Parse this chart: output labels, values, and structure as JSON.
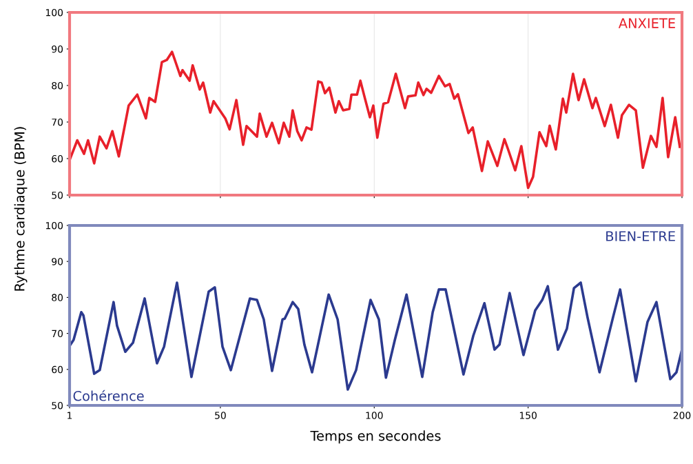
{
  "chart_data": [
    {
      "type": "line",
      "ylabel": "Rythme cardiaque (BPM)",
      "annotations": [
        "ANXIETE"
      ],
      "xlim": [
        1,
        200
      ],
      "xticks": [
        1,
        50,
        100,
        150,
        200
      ],
      "ylim": [
        50,
        100
      ],
      "yticks": [
        50,
        60,
        70,
        80,
        90,
        100
      ],
      "tick_labels": "y",
      "grid": "x",
      "line_style": "solid",
      "series": [
        {
          "color": "#e8202a",
          "x": [
            1,
            3.5,
            5.7,
            7,
            9,
            10.8,
            13,
            14.9,
            17,
            20.2,
            23,
            25.8,
            26.9,
            28.8,
            31,
            32.6,
            34.3,
            37,
            37.7,
            40,
            41,
            43.3,
            44.4,
            46.7,
            47.8,
            51.6,
            53,
            55.2,
            57.4,
            58.5,
            61.9,
            62.8,
            65,
            66.8,
            69,
            70.6,
            72.4,
            73.5,
            75,
            76.4,
            78,
            79.6,
            81.8,
            82.9,
            84,
            85.4,
            87.4,
            88.5,
            89.9,
            91.9,
            92.6,
            94.4,
            95.5,
            97,
            98.6,
            99.7,
            101,
            103,
            104.5,
            107,
            110,
            111,
            113.4,
            114.3,
            116,
            117,
            118.5,
            121,
            123,
            124.5,
            126,
            127.2,
            130.6,
            132,
            135,
            136.9,
            140,
            142.3,
            143.5,
            145.8,
            147.8,
            150,
            151.6,
            153.7,
            155.9,
            157,
            159,
            161.3,
            162.4,
            164.6,
            166.4,
            168.2,
            170.9,
            172,
            174.9,
            176.9,
            179.2,
            180.5,
            182.8,
            185,
            187.3,
            189.9,
            191.7,
            193.7,
            195.5,
            197.8,
            199.3
          ],
          "values": [
            59.6,
            65,
            61.3,
            65,
            58.7,
            66,
            62.8,
            67.5,
            60.6,
            74.5,
            77.5,
            71,
            76.6,
            75.5,
            86.4,
            87,
            89.2,
            82.6,
            84.2,
            81.3,
            85.5,
            78.9,
            80.8,
            72.6,
            75.7,
            71,
            68,
            76,
            63.8,
            68.9,
            66,
            72.3,
            66,
            69.8,
            64.2,
            69.8,
            66,
            73.2,
            67.5,
            65,
            68.5,
            67.9,
            81.1,
            80.8,
            77.9,
            79.4,
            72.6,
            75.7,
            73.2,
            73.6,
            77.5,
            77.5,
            81.3,
            76.4,
            71.3,
            74.5,
            65.7,
            75,
            75.4,
            83.2,
            73.8,
            77,
            77.3,
            80.8,
            77.4,
            79.1,
            78,
            82.6,
            79.8,
            80.4,
            76.4,
            77.6,
            67,
            68.5,
            56.6,
            64.7,
            58,
            65.3,
            62.5,
            56.8,
            63.4,
            52,
            55,
            67.2,
            63.4,
            69,
            62.5,
            76.4,
            72.6,
            83.2,
            76,
            81.7,
            73.8,
            76.6,
            68.9,
            74.7,
            65.7,
            71.9,
            74.7,
            73.2,
            57.5,
            66.2,
            63.2,
            76.6,
            60.4,
            71.3,
            63.2
          ]
        }
      ]
    },
    {
      "type": "line",
      "xlabel": "Temps en secondes",
      "annotations": [
        "BIEN-ETRE",
        "Cohérence"
      ],
      "xlim": [
        1,
        200
      ],
      "xticks": [
        1,
        50,
        100,
        150,
        200
      ],
      "ylim": [
        50,
        100
      ],
      "yticks": [
        50,
        60,
        70,
        80,
        90,
        100
      ],
      "line_style": "solid",
      "series": [
        {
          "color": "#2b3a8f",
          "x": [
            1,
            2.3,
            4.8,
            5.5,
            9,
            10.8,
            15.3,
            16.4,
            19.1,
            21.6,
            25.4,
            29.4,
            31.7,
            35.9,
            40.6,
            46.2,
            48.2,
            50.7,
            53.4,
            59.6,
            61.9,
            64.1,
            66.8,
            70.2,
            70.9,
            73.5,
            75.3,
            77.3,
            79.8,
            85.2,
            88.1,
            91.4,
            94.1,
            98.8,
            101.5,
            103.8,
            106.7,
            110.5,
            115.6,
            119,
            121,
            123.2,
            129,
            132.2,
            135.8,
            139.1,
            140.7,
            144,
            148.5,
            152.3,
            154.6,
            156.4,
            159.7,
            162.6,
            164.9,
            167.1,
            169.3,
            173.2,
            177.6,
            179.9,
            185,
            188.8,
            191.7,
            196.2,
            198.2,
            200
          ],
          "values": [
            66.5,
            68.2,
            75.9,
            75,
            58.8,
            59.8,
            78.7,
            72.2,
            64.9,
            67.4,
            79.7,
            61.7,
            66.3,
            84.1,
            57.9,
            81.6,
            82.8,
            66.3,
            59.8,
            79.7,
            79.3,
            73.9,
            59.6,
            73.9,
            74.1,
            78.7,
            76.8,
            66.9,
            59.2,
            80.8,
            73.9,
            54.4,
            59.8,
            79.3,
            73.9,
            57.7,
            68.2,
            80.8,
            57.9,
            75.9,
            82.2,
            82.2,
            58.6,
            69.4,
            78.4,
            65.5,
            66.9,
            81.2,
            64,
            76.4,
            79.3,
            83.1,
            65.5,
            71.3,
            82.6,
            84.1,
            74.5,
            59.2,
            74.5,
            82.2,
            56.7,
            73.2,
            78.7,
            57.3,
            59.2,
            65.5
          ]
        }
      ]
    }
  ]
}
